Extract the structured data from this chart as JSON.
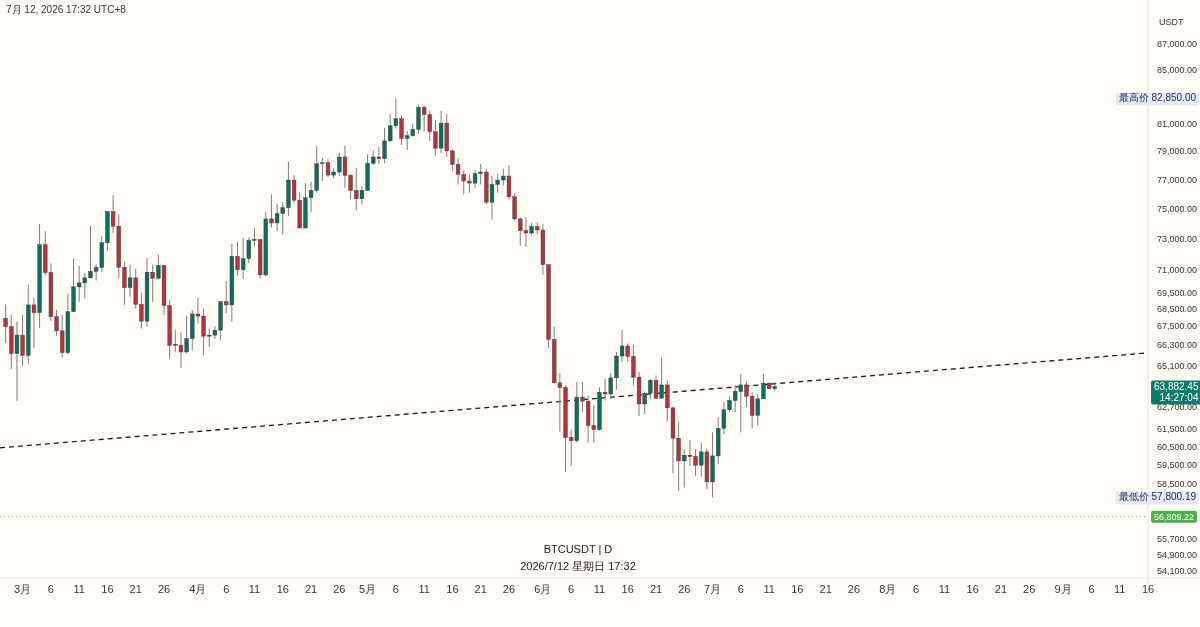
{
  "chart_data": {
    "type": "candlestick",
    "title": "BTCUSDT | D",
    "subtitle": "2026/7/12 星期日 17:32",
    "ylabel": "USDT",
    "log": true,
    "xlim": [
      "2026-02-25",
      "2026-09-16"
    ],
    "ylim": [
      53750,
      90550
    ],
    "xticks": [
      {
        "value": "2026-03-01",
        "label": "3月"
      },
      {
        "value": "2026-03-06",
        "label": "6"
      },
      {
        "value": "2026-03-11",
        "label": "11"
      },
      {
        "value": "2026-03-16",
        "label": "16"
      },
      {
        "value": "2026-03-21",
        "label": "21"
      },
      {
        "value": "2026-03-26",
        "label": "26"
      },
      {
        "value": "2026-04-01",
        "label": "4月"
      },
      {
        "value": "2026-04-06",
        "label": "6"
      },
      {
        "value": "2026-04-11",
        "label": "11"
      },
      {
        "value": "2026-04-16",
        "label": "16"
      },
      {
        "value": "2026-04-21",
        "label": "21"
      },
      {
        "value": "2026-04-26",
        "label": "26"
      },
      {
        "value": "2026-05-01",
        "label": "5月"
      },
      {
        "value": "2026-05-06",
        "label": "6"
      },
      {
        "value": "2026-05-11",
        "label": "11"
      },
      {
        "value": "2026-05-16",
        "label": "16"
      },
      {
        "value": "2026-05-21",
        "label": "21"
      },
      {
        "value": "2026-05-26",
        "label": "26"
      },
      {
        "value": "2026-06-01",
        "label": "6月"
      },
      {
        "value": "2026-06-06",
        "label": "6"
      },
      {
        "value": "2026-06-11",
        "label": "11"
      },
      {
        "value": "2026-06-16",
        "label": "16"
      },
      {
        "value": "2026-06-21",
        "label": "21"
      },
      {
        "value": "2026-06-26",
        "label": "26"
      },
      {
        "value": "2026-07-01",
        "label": "7月"
      },
      {
        "value": "2026-07-06",
        "label": "6"
      },
      {
        "value": "2026-07-11",
        "label": "11"
      },
      {
        "value": "2026-07-16",
        "label": "16"
      },
      {
        "value": "2026-07-21",
        "label": "21"
      },
      {
        "value": "2026-07-26",
        "label": "26"
      },
      {
        "value": "2026-08-01",
        "label": "8月"
      },
      {
        "value": "2026-08-06",
        "label": "6"
      },
      {
        "value": "2026-08-11",
        "label": "11"
      },
      {
        "value": "2026-08-16",
        "label": "16"
      },
      {
        "value": "2026-08-21",
        "label": "21"
      },
      {
        "value": "2026-08-26",
        "label": "26"
      },
      {
        "value": "2026-09-01",
        "label": "9月"
      },
      {
        "value": "2026-09-06",
        "label": "6"
      },
      {
        "value": "2026-09-11",
        "label": "11"
      },
      {
        "value": "2026-09-16",
        "label": "16"
      }
    ],
    "yticks": [
      {
        "value": 87000,
        "label": "87,000.00"
      },
      {
        "value": 85000,
        "label": "85,000.00"
      },
      {
        "value": 81000,
        "label": "81,000.00"
      },
      {
        "value": 79000,
        "label": "79,000.00"
      },
      {
        "value": 77000,
        "label": "77,000.00"
      },
      {
        "value": 75000,
        "label": "75,000.00"
      },
      {
        "value": 73000,
        "label": "73,000.00"
      },
      {
        "value": 71000,
        "label": "71,000.00"
      },
      {
        "value": 69500,
        "label": "69,500.00"
      },
      {
        "value": 68500,
        "label": "68,500.00"
      },
      {
        "value": 67500,
        "label": "67,500.00"
      },
      {
        "value": 66300,
        "label": "66,300.00"
      },
      {
        "value": 65100,
        "label": "65,100.00"
      },
      {
        "value": 62700,
        "label": "62,700.00"
      },
      {
        "value": 61500,
        "label": "61,500.00"
      },
      {
        "value": 60500,
        "label": "60,500.00"
      },
      {
        "value": 59500,
        "label": "59,500.00"
      },
      {
        "value": 58500,
        "label": "58,500.00"
      },
      {
        "value": 55700,
        "label": "55,700.00"
      },
      {
        "value": 54900,
        "label": "54,900.00"
      },
      {
        "value": 54100,
        "label": "54,100.00"
      }
    ],
    "ref_lines": [
      {
        "axis": "y",
        "value": 56809.22,
        "label": "56,809.22",
        "color": "#4caf50",
        "line_style": "dotted"
      }
    ],
    "annotations": [
      "7月 12, 2026 17:32 UTC+8",
      "最高价 82,850.00",
      "最低价 57,800.19",
      "63,882.45\n14:27:04"
    ],
    "series": [
      {
        "type": "candlestick",
        "x": [
          "2026-02-26",
          "2026-02-27",
          "2026-02-28",
          "2026-03-01",
          "2026-03-02",
          "2026-03-03",
          "2026-03-04",
          "2026-03-05",
          "2026-03-06",
          "2026-03-07",
          "2026-03-08",
          "2026-03-09",
          "2026-03-10",
          "2026-03-11",
          "2026-03-12",
          "2026-03-13",
          "2026-03-14",
          "2026-03-15",
          "2026-03-16",
          "2026-03-17",
          "2026-03-18",
          "2026-03-19",
          "2026-03-20",
          "2026-03-21",
          "2026-03-22",
          "2026-03-23",
          "2026-03-24",
          "2026-03-25",
          "2026-03-26",
          "2026-03-27",
          "2026-03-28",
          "2026-03-29",
          "2026-03-30",
          "2026-03-31",
          "2026-04-01",
          "2026-04-02",
          "2026-04-03",
          "2026-04-04",
          "2026-04-05",
          "2026-04-06",
          "2026-04-07",
          "2026-04-08",
          "2026-04-09",
          "2026-04-10",
          "2026-04-11",
          "2026-04-12",
          "2026-04-13",
          "2026-04-14",
          "2026-04-15",
          "2026-04-16",
          "2026-04-17",
          "2026-04-18",
          "2026-04-19",
          "2026-04-20",
          "2026-04-21",
          "2026-04-22",
          "2026-04-23",
          "2026-04-24",
          "2026-04-25",
          "2026-04-26",
          "2026-04-27",
          "2026-04-28",
          "2026-04-29",
          "2026-04-30",
          "2026-05-01",
          "2026-05-02",
          "2026-05-03",
          "2026-05-04",
          "2026-05-05",
          "2026-05-06",
          "2026-05-07",
          "2026-05-08",
          "2026-05-09",
          "2026-05-10",
          "2026-05-11",
          "2026-05-12",
          "2026-05-13",
          "2026-05-14",
          "2026-05-15",
          "2026-05-16",
          "2026-05-17",
          "2026-05-18",
          "2026-05-19",
          "2026-05-20",
          "2026-05-21",
          "2026-05-22",
          "2026-05-23",
          "2026-05-24",
          "2026-05-25",
          "2026-05-26",
          "2026-05-27",
          "2026-05-28",
          "2026-05-29",
          "2026-05-30",
          "2026-05-31",
          "2026-06-01",
          "2026-06-02",
          "2026-06-03",
          "2026-06-04",
          "2026-06-05",
          "2026-06-06",
          "2026-06-07",
          "2026-06-08",
          "2026-06-09",
          "2026-06-10",
          "2026-06-11",
          "2026-06-12",
          "2026-06-13",
          "2026-06-14",
          "2026-06-15",
          "2026-06-16",
          "2026-06-17",
          "2026-06-18",
          "2026-06-19",
          "2026-06-20",
          "2026-06-21",
          "2026-06-22",
          "2026-06-23",
          "2026-06-24",
          "2026-06-25",
          "2026-06-26",
          "2026-06-27",
          "2026-06-28",
          "2026-06-29",
          "2026-06-30",
          "2026-07-01",
          "2026-07-02",
          "2026-07-03",
          "2026-07-04",
          "2026-07-05",
          "2026-07-06",
          "2026-07-07",
          "2026-07-08",
          "2026-07-09",
          "2026-07-10",
          "2026-07-11",
          "2026-07-12"
        ],
        "ohlc": [
          [
            67940,
            68800,
            66450,
            67430
          ],
          [
            67430,
            68160,
            64900,
            65810
          ],
          [
            65810,
            67730,
            63050,
            66920
          ],
          [
            66920,
            68160,
            65080,
            65710
          ],
          [
            65710,
            70040,
            65210,
            68770
          ],
          [
            68770,
            69220,
            66150,
            68290
          ],
          [
            68290,
            73980,
            67360,
            72610
          ],
          [
            72610,
            73500,
            70620,
            70810
          ],
          [
            70810,
            71390,
            67790,
            68040
          ],
          [
            68040,
            68470,
            66880,
            67180
          ],
          [
            67180,
            68160,
            65610,
            65870
          ],
          [
            65870,
            69470,
            65750,
            68350
          ],
          [
            68350,
            71720,
            68350,
            69900
          ],
          [
            69900,
            71260,
            68970,
            70150
          ],
          [
            70150,
            70770,
            69180,
            70470
          ],
          [
            70470,
            73850,
            70430,
            70880
          ],
          [
            70880,
            71330,
            70300,
            71130
          ],
          [
            71130,
            73160,
            70830,
            72740
          ],
          [
            72740,
            74820,
            72240,
            74820
          ],
          [
            74820,
            75930,
            73380,
            73830
          ],
          [
            73830,
            74620,
            70440,
            71150
          ],
          [
            71150,
            71520,
            68770,
            69850
          ],
          [
            69850,
            71310,
            69290,
            70470
          ],
          [
            70470,
            71050,
            68550,
            68800
          ],
          [
            68800,
            69540,
            67320,
            67770
          ],
          [
            67770,
            71740,
            67430,
            70830
          ],
          [
            70830,
            71310,
            68930,
            70440
          ],
          [
            70440,
            71960,
            70360,
            71260
          ],
          [
            71260,
            71260,
            68140,
            68720
          ],
          [
            68720,
            69080,
            65510,
            66310
          ],
          [
            66310,
            67220,
            65910,
            66370
          ],
          [
            66310,
            67080,
            64960,
            65910
          ],
          [
            65910,
            68100,
            65810,
            66710
          ],
          [
            66710,
            68450,
            66010,
            68210
          ],
          [
            68210,
            69220,
            67630,
            68080
          ],
          [
            68080,
            68550,
            65710,
            66860
          ],
          [
            66860,
            67320,
            66210,
            66920
          ],
          [
            66920,
            67470,
            66710,
            67220
          ],
          [
            67220,
            69010,
            66610,
            68970
          ],
          [
            68970,
            70280,
            68250,
            68770
          ],
          [
            68770,
            72680,
            67730,
            71850
          ],
          [
            71850,
            72780,
            70620,
            70990
          ],
          [
            70990,
            73050,
            70400,
            71700
          ],
          [
            71700,
            73100,
            71410,
            72900
          ],
          [
            72900,
            73710,
            72500,
            72960
          ],
          [
            72960,
            72960,
            70440,
            70660
          ],
          [
            70660,
            74790,
            70560,
            74320
          ],
          [
            74320,
            75980,
            73760,
            74050
          ],
          [
            74050,
            75360,
            73500,
            74680
          ],
          [
            74680,
            75450,
            73280,
            75070
          ],
          [
            75070,
            78250,
            74500,
            76970
          ],
          [
            76970,
            77320,
            75360,
            75590
          ],
          [
            75590,
            76140,
            73710,
            73710
          ],
          [
            73710,
            76760,
            73710,
            75750
          ],
          [
            75750,
            76850,
            74790,
            76250
          ],
          [
            76250,
            79380,
            76090,
            78110
          ],
          [
            78110,
            78540,
            76900,
            78180
          ],
          [
            78180,
            78420,
            77180,
            77320
          ],
          [
            77320,
            77790,
            77090,
            77530
          ],
          [
            77530,
            78900,
            77250,
            78590
          ],
          [
            78590,
            79380,
            76440,
            77300
          ],
          [
            77300,
            77370,
            75640,
            76250
          ],
          [
            76250,
            77830,
            74890,
            75680
          ],
          [
            75680,
            76560,
            75300,
            76250
          ],
          [
            76250,
            78780,
            76250,
            78140
          ],
          [
            78140,
            79090,
            78020,
            78590
          ],
          [
            78590,
            79330,
            78070,
            78470
          ],
          [
            78470,
            80670,
            78140,
            79740
          ],
          [
            79740,
            81700,
            79690,
            80840
          ],
          [
            80840,
            82850,
            80640,
            81350
          ],
          [
            81350,
            81570,
            79450,
            79910
          ],
          [
            79910,
            80470,
            79090,
            80110
          ],
          [
            80110,
            81000,
            80060,
            80580
          ],
          [
            80580,
            82390,
            80230,
            82190
          ],
          [
            82190,
            82320,
            80420,
            81650
          ],
          [
            81650,
            81940,
            79740,
            80400
          ],
          [
            80400,
            81250,
            78660,
            79220
          ],
          [
            79220,
            81940,
            78860,
            81030
          ],
          [
            81030,
            81700,
            78590,
            79020
          ],
          [
            79020,
            79140,
            77600,
            78070
          ],
          [
            78070,
            78540,
            76670,
            77370
          ],
          [
            77370,
            77670,
            75980,
            76900
          ],
          [
            76900,
            77370,
            76090,
            76760
          ],
          [
            76760,
            77720,
            76440,
            77410
          ],
          [
            77410,
            78110,
            76670,
            77530
          ],
          [
            77530,
            77720,
            75300,
            75450
          ],
          [
            75450,
            77250,
            74280,
            76670
          ],
          [
            76670,
            77410,
            76090,
            76970
          ],
          [
            76970,
            77790,
            76600,
            77250
          ],
          [
            77250,
            78000,
            75640,
            75820
          ],
          [
            75820,
            76090,
            74210,
            74320
          ],
          [
            74320,
            74430,
            72550,
            73540
          ],
          [
            73540,
            74430,
            72460,
            73380
          ],
          [
            73380,
            74050,
            73230,
            73810
          ],
          [
            73810,
            74090,
            73310,
            73580
          ],
          [
            73580,
            73980,
            70660,
            71310
          ],
          [
            71310,
            71310,
            66150,
            66670
          ],
          [
            66670,
            67430,
            64040,
            64100
          ],
          [
            64100,
            64670,
            61340,
            63830
          ],
          [
            63830,
            63950,
            59150,
            61020
          ],
          [
            61020,
            61450,
            59470,
            60840
          ],
          [
            60840,
            64140,
            60740,
            63280
          ],
          [
            63280,
            64140,
            62430,
            63050
          ],
          [
            63050,
            63370,
            60740,
            61680
          ],
          [
            61680,
            62800,
            60740,
            61450
          ],
          [
            61450,
            63850,
            61390,
            63560
          ],
          [
            63560,
            64330,
            63090,
            63460
          ],
          [
            63460,
            64670,
            63180,
            64390
          ],
          [
            64390,
            65910,
            63700,
            65670
          ],
          [
            65670,
            67220,
            65310,
            66270
          ],
          [
            66270,
            66410,
            65310,
            65650
          ],
          [
            65650,
            66350,
            63950,
            64430
          ],
          [
            64430,
            64730,
            62200,
            62890
          ],
          [
            62890,
            63600,
            62300,
            63500
          ],
          [
            63500,
            64330,
            63180,
            64240
          ],
          [
            64240,
            64530,
            63150,
            63220
          ],
          [
            63220,
            65570,
            63220,
            63980
          ],
          [
            63980,
            64240,
            61900,
            62670
          ],
          [
            62670,
            62710,
            59080,
            60980
          ],
          [
            60980,
            61900,
            58140,
            59740
          ],
          [
            59740,
            60380,
            58320,
            60050
          ],
          [
            60050,
            60890,
            59470,
            59980
          ],
          [
            59980,
            60380,
            58940,
            59510
          ],
          [
            59510,
            60740,
            58900,
            60230
          ],
          [
            60230,
            60420,
            58230,
            58620
          ],
          [
            58620,
            61300,
            57800.19,
            60010
          ],
          [
            60010,
            62140,
            59560,
            61520
          ],
          [
            61520,
            62990,
            61200,
            62560
          ],
          [
            62560,
            63330,
            62430,
            63090
          ],
          [
            63090,
            63980,
            62430,
            63600
          ],
          [
            63600,
            64620,
            61300,
            63980
          ],
          [
            63980,
            64180,
            62710,
            63330
          ],
          [
            63330,
            63560,
            61520,
            62240
          ],
          [
            62240,
            63460,
            61680,
            63180
          ],
          [
            63180,
            64620,
            63180,
            64080
          ],
          [
            64080,
            64140,
            63760,
            63760
          ],
          [
            63760,
            64140,
            63640,
            63882.45
          ]
        ],
        "colors": [
          "#b3343c",
          "#b3343c",
          "#0e6e5c",
          "#b3343c",
          "#0e6e5c",
          "#b3343c",
          "#0e6e5c",
          "#b3343c",
          "#b3343c",
          "#b3343c",
          "#b3343c",
          "#0e6e5c",
          "#0e6e5c",
          "#0e6e5c",
          "#0e6e5c",
          "#0e6e5c",
          "#0e6e5c",
          "#0e6e5c",
          "#0e6e5c",
          "#b3343c",
          "#b3343c",
          "#b3343c",
          "#0e6e5c",
          "#b3343c",
          "#b3343c",
          "#0e6e5c",
          "#b3343c",
          "#0e6e5c",
          "#b3343c",
          "#b3343c",
          "#0e6e5c",
          "#b3343c",
          "#0e6e5c",
          "#0e6e5c",
          "#b3343c",
          "#b3343c",
          "#0e6e5c",
          "#0e6e5c",
          "#0e6e5c",
          "#b3343c",
          "#0e6e5c",
          "#b3343c",
          "#0e6e5c",
          "#0e6e5c",
          "#0e6e5c",
          "#b3343c",
          "#0e6e5c",
          "#b3343c",
          "#0e6e5c",
          "#0e6e5c",
          "#0e6e5c",
          "#b3343c",
          "#b3343c",
          "#0e6e5c",
          "#0e6e5c",
          "#0e6e5c",
          "#0e6e5c",
          "#b3343c",
          "#0e6e5c",
          "#0e6e5c",
          "#b3343c",
          "#b3343c",
          "#b3343c",
          "#0e6e5c",
          "#0e6e5c",
          "#0e6e5c",
          "#b3343c",
          "#0e6e5c",
          "#0e6e5c",
          "#0e6e5c",
          "#b3343c",
          "#0e6e5c",
          "#0e6e5c",
          "#0e6e5c",
          "#b3343c",
          "#b3343c",
          "#b3343c",
          "#0e6e5c",
          "#b3343c",
          "#b3343c",
          "#b3343c",
          "#b3343c",
          "#b3343c",
          "#0e6e5c",
          "#0e6e5c",
          "#b3343c",
          "#0e6e5c",
          "#0e6e5c",
          "#0e6e5c",
          "#b3343c",
          "#b3343c",
          "#b3343c",
          "#b3343c",
          "#0e6e5c",
          "#b3343c",
          "#b3343c",
          "#b3343c",
          "#b3343c",
          "#b3343c",
          "#b3343c",
          "#b3343c",
          "#0e6e5c",
          "#b3343c",
          "#b3343c",
          "#b3343c",
          "#0e6e5c",
          "#b3343c",
          "#0e6e5c",
          "#0e6e5c",
          "#0e6e5c",
          "#b3343c",
          "#b3343c",
          "#b3343c",
          "#0e6e5c",
          "#0e6e5c",
          "#b3343c",
          "#0e6e5c",
          "#b3343c",
          "#b3343c",
          "#b3343c",
          "#0e6e5c",
          "#b3343c",
          "#b3343c",
          "#0e6e5c",
          "#b3343c",
          "#0e6e5c",
          "#0e6e5c",
          "#0e6e5c",
          "#0e6e5c",
          "#0e6e5c",
          "#0e6e5c",
          "#b3343c",
          "#b3343c",
          "#0e6e5c",
          "#0e6e5c",
          "#b3343c",
          "#0e6e5c"
        ]
      },
      {
        "type": "line",
        "x": [
          "2026-02-25",
          "2026-09-16"
        ],
        "values": [
          60450,
          65860
        ],
        "color": "#1a1a1a",
        "line_style": "dashed"
      }
    ]
  }
}
